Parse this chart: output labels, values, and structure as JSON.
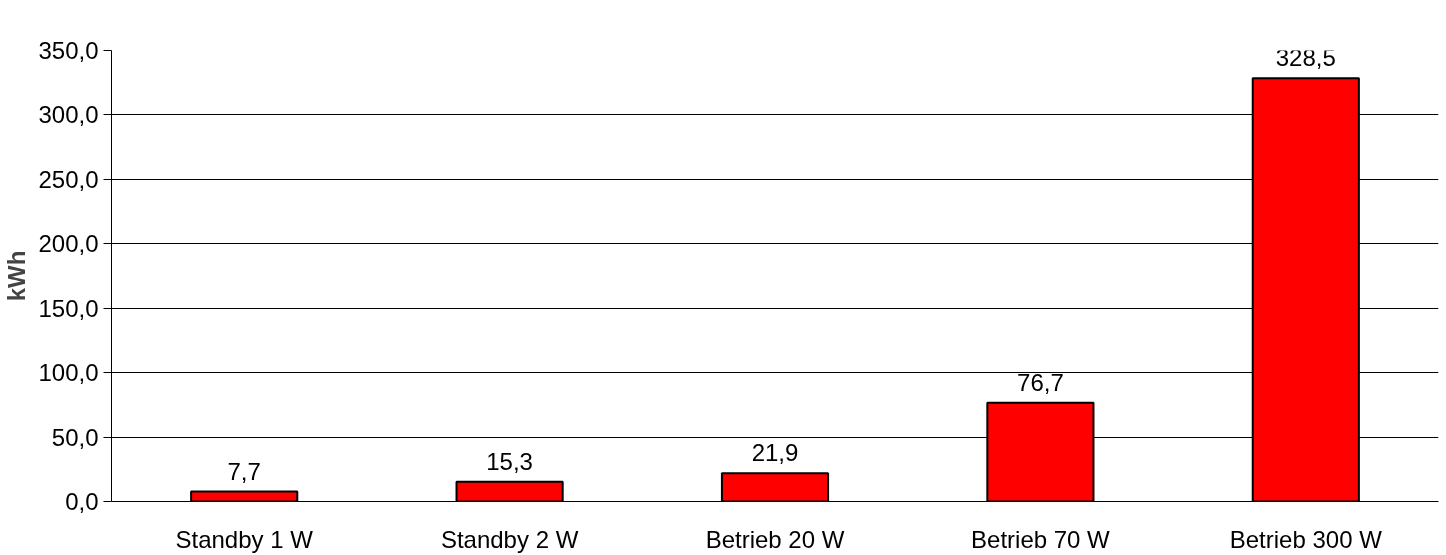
{
  "chart_data": {
    "type": "bar",
    "ylabel": "kWh",
    "categories": [
      "Standby 1 W",
      "Standby 2 W",
      "Betrieb 20 W",
      "Betrieb 70 W",
      "Betrieb 300 W"
    ],
    "values": [
      7.7,
      15.3,
      21.9,
      76.7,
      328.5
    ],
    "value_labels": [
      "7,7",
      "15,3",
      "21,9",
      "76,7",
      "328,5"
    ],
    "color": "#ff0000",
    "ylim": [
      0,
      350
    ],
    "yticks": [
      {
        "value": 0,
        "label": "0,0"
      },
      {
        "value": 50,
        "label": "50,0"
      },
      {
        "value": 100,
        "label": "100,0"
      },
      {
        "value": 150,
        "label": "150,0"
      },
      {
        "value": 200,
        "label": "200,0"
      },
      {
        "value": 250,
        "label": "250,0"
      },
      {
        "value": 300,
        "label": "300,0"
      },
      {
        "value": 350,
        "label": "350,0"
      }
    ],
    "grid": "y"
  }
}
